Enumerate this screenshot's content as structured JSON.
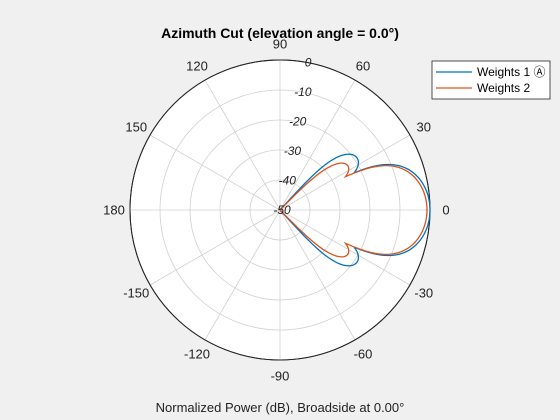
{
  "chart_data": {
    "type": "line",
    "subtype": "polar",
    "title": "Azimuth Cut (elevation angle = 0.0°)",
    "bottom_label": "Normalized Power (dB), Broadside at 0.00°",
    "angle_ticks": [
      0,
      30,
      60,
      90,
      120,
      150,
      180,
      -150,
      -120,
      -90,
      -60,
      -30
    ],
    "angle_tick_labels": [
      "0",
      "30",
      "60",
      "90",
      "120",
      "150",
      "180",
      "-150",
      "-120",
      "-90",
      "-60",
      "-30"
    ],
    "radial_ticks": [
      0,
      -10,
      -20,
      -30,
      -40,
      -50
    ],
    "radial_tick_labels": [
      "0",
      "-10",
      "-20",
      "-30",
      "-40",
      "-50"
    ],
    "radial_label_angle_deg": 80,
    "rlim": [
      -50,
      0
    ],
    "grid": true,
    "legend_position": "top-right",
    "series": [
      {
        "name": "Weights 1",
        "name_suffix": " Ⓐ",
        "color": "#0072BD",
        "lobes": [
          {
            "center": 0,
            "half_width": 28,
            "peak": 0
          },
          {
            "center": 34,
            "half_width": 14,
            "peak": -19
          },
          {
            "center": -34,
            "half_width": 14,
            "peak": -19
          }
        ]
      },
      {
        "name": "Weights 2",
        "color": "#D95319",
        "lobes": [
          {
            "center": 0,
            "half_width": 28,
            "peak": -1
          },
          {
            "center": 33,
            "half_width": 13,
            "peak": -23
          },
          {
            "center": -33,
            "half_width": 13,
            "peak": -23
          }
        ]
      }
    ]
  }
}
